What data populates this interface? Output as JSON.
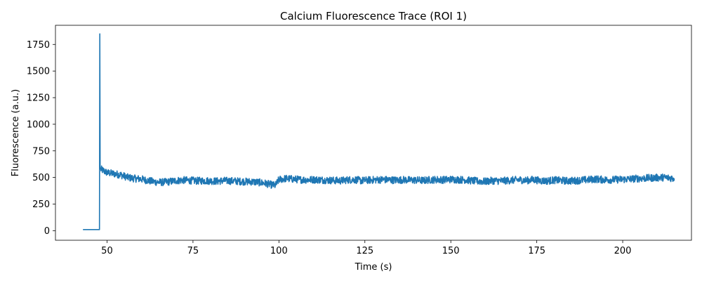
{
  "chart_data": {
    "type": "line",
    "title": "Calcium Fluorescence Trace (ROI 1)",
    "xlabel": "Time (s)",
    "ylabel": "Fluorescence (a.u.)",
    "xlim": [
      35,
      220
    ],
    "ylim": [
      -90,
      1930
    ],
    "xticks": [
      50,
      75,
      100,
      125,
      150,
      175,
      200
    ],
    "yticks": [
      0,
      250,
      500,
      750,
      1000,
      1250,
      1500,
      1750
    ],
    "grid": false,
    "legend": "none",
    "series": [
      {
        "color": "#1f77b4",
        "x_start": 43.0,
        "x_end": 215.0,
        "points": [
          [
            43.0,
            10
          ],
          [
            47.7,
            10
          ],
          [
            47.8,
            10
          ],
          [
            47.9,
            1850
          ],
          [
            48.0,
            580
          ],
          [
            50,
            545
          ],
          [
            52,
            535
          ],
          [
            54,
            525
          ],
          [
            56,
            500
          ],
          [
            58,
            490
          ],
          [
            60,
            485
          ],
          [
            62,
            470
          ],
          [
            64,
            458
          ],
          [
            66,
            455
          ],
          [
            68,
            460
          ],
          [
            70,
            470
          ],
          [
            72,
            475
          ],
          [
            74,
            472
          ],
          [
            76,
            468
          ],
          [
            78,
            470
          ],
          [
            80,
            468
          ],
          [
            82,
            465
          ],
          [
            84,
            470
          ],
          [
            86,
            468
          ],
          [
            88,
            465
          ],
          [
            90,
            462
          ],
          [
            92,
            460
          ],
          [
            94,
            455
          ],
          [
            96,
            445
          ],
          [
            98,
            430
          ],
          [
            99,
            425
          ],
          [
            100,
            480
          ],
          [
            102,
            490
          ],
          [
            104,
            485
          ],
          [
            106,
            480
          ],
          [
            108,
            478
          ],
          [
            110,
            480
          ],
          [
            112,
            478
          ],
          [
            114,
            475
          ],
          [
            116,
            472
          ],
          [
            118,
            470
          ],
          [
            120,
            478
          ],
          [
            122,
            480
          ],
          [
            124,
            470
          ],
          [
            126,
            475
          ],
          [
            128,
            478
          ],
          [
            130,
            480
          ],
          [
            132,
            478
          ],
          [
            134,
            475
          ],
          [
            136,
            478
          ],
          [
            138,
            476
          ],
          [
            140,
            474
          ],
          [
            142,
            472
          ],
          [
            144,
            478
          ],
          [
            146,
            480
          ],
          [
            148,
            478
          ],
          [
            150,
            482
          ],
          [
            152,
            480
          ],
          [
            154,
            478
          ],
          [
            156,
            470
          ],
          [
            158,
            465
          ],
          [
            160,
            462
          ],
          [
            162,
            470
          ],
          [
            164,
            468
          ],
          [
            166,
            470
          ],
          [
            168,
            475
          ],
          [
            170,
            478
          ],
          [
            172,
            472
          ],
          [
            174,
            480
          ],
          [
            176,
            470
          ],
          [
            178,
            468
          ],
          [
            180,
            475
          ],
          [
            182,
            472
          ],
          [
            184,
            468
          ],
          [
            186,
            470
          ],
          [
            188,
            475
          ],
          [
            190,
            478
          ],
          [
            192,
            485
          ],
          [
            194,
            480
          ],
          [
            196,
            478
          ],
          [
            198,
            480
          ],
          [
            200,
            482
          ],
          [
            202,
            485
          ],
          [
            204,
            490
          ],
          [
            206,
            492
          ],
          [
            208,
            495
          ],
          [
            210,
            498
          ],
          [
            212,
            500
          ],
          [
            214,
            495
          ],
          [
            215,
            490
          ]
        ]
      }
    ]
  }
}
